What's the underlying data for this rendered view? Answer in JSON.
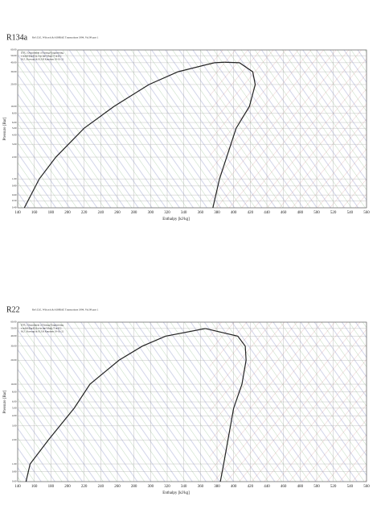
{
  "chart_data": [
    {
      "type": "line",
      "title": "R134a",
      "subtitle": "Ref :D.E. Wilcock & ASHRAE Transactions 1994, Vol.99 part 1",
      "notes": [
        "DTU, Department of Energy Engineering",
        "s in [kJ/(kg K)], v in [m^3/kg], T in [C]",
        "M.J. Skovrup & H.J.H Knudsen 19-01-21"
      ],
      "xlabel": "Enthalpy [kJ/kg]",
      "ylabel": "Pressure [Bar]",
      "log_y": true,
      "grid": true,
      "xlim": [
        140,
        560
      ],
      "xticks": [
        140,
        160,
        180,
        200,
        220,
        240,
        260,
        280,
        300,
        320,
        340,
        360,
        380,
        400,
        420,
        440,
        460,
        480,
        500,
        520,
        540,
        560
      ],
      "ylim": [
        0.4,
        60
      ],
      "yticks": [
        {
          "value": 60,
          "label": "60.00"
        },
        {
          "value": 50,
          "label": "50.00"
        },
        {
          "value": 40,
          "label": "40.00"
        },
        {
          "value": 30,
          "label": "30.00"
        },
        {
          "value": 20,
          "label": "20.00"
        },
        {
          "value": 10,
          "label": "10.00"
        },
        {
          "value": 8,
          "label": "8.00"
        },
        {
          "value": 6,
          "label": "6.00"
        },
        {
          "value": 5,
          "label": "5.00"
        },
        {
          "value": 4,
          "label": "4.00"
        },
        {
          "value": 3,
          "label": "3.00"
        },
        {
          "value": 2,
          "label": "2.00"
        },
        {
          "value": 1,
          "label": "1.00"
        },
        {
          "value": 0.8,
          "label": "0.80"
        },
        {
          "value": 0.6,
          "label": "0.60"
        },
        {
          "value": 0.5,
          "label": "0.50"
        },
        {
          "value": 0.4,
          "label": "0.40"
        }
      ],
      "series": [
        {
          "color": "#222222",
          "x": [
            148,
            166,
            186,
            220,
            256,
            298,
            333,
            377,
            389
          ],
          "values": [
            0.4,
            1,
            2,
            5,
            10,
            20,
            30,
            40,
            40.6
          ]
        },
        {
          "color": "#222222",
          "x": [
            389,
            407,
            423,
            426,
            419,
            403,
            383,
            375
          ],
          "values": [
            40.6,
            40,
            30,
            20,
            10,
            5,
            1,
            0.4
          ]
        }
      ]
    },
    {
      "type": "line",
      "title": "R22",
      "subtitle": "Ref :D.E. Wilcock & ASHRAE Transactions 1994, Vol.99 part 1",
      "notes": [
        "DTU, Department of Energy Engineering",
        "s in [kJ/(kg K)], v in [m^3/kg], T in [C]",
        "M.J. Skovrup & H.J.H Knudsen 19-01-21"
      ],
      "xlabel": "Enthalpy [kJ/kg]",
      "ylabel": "Pressure [Bar]",
      "log_y": true,
      "grid": true,
      "xlim": [
        140,
        560
      ],
      "xticks": [
        140,
        160,
        180,
        200,
        220,
        240,
        260,
        280,
        300,
        320,
        340,
        360,
        380,
        400,
        420,
        440,
        460,
        480,
        500,
        520,
        540,
        560
      ],
      "ylim": [
        0.6,
        60
      ],
      "yticks": [
        {
          "value": 60,
          "label": "60.00"
        },
        {
          "value": 50,
          "label": "50.00"
        },
        {
          "value": 40,
          "label": "40.00"
        },
        {
          "value": 30,
          "label": "30.00"
        },
        {
          "value": 20,
          "label": "20.00"
        },
        {
          "value": 10,
          "label": "10.00"
        },
        {
          "value": 8,
          "label": "8.00"
        },
        {
          "value": 6,
          "label": "6.00"
        },
        {
          "value": 5,
          "label": "5.00"
        },
        {
          "value": 4,
          "label": "4.00"
        },
        {
          "value": 3,
          "label": "3.00"
        },
        {
          "value": 2,
          "label": "2.00"
        },
        {
          "value": 1,
          "label": "1.00"
        },
        {
          "value": 0.8,
          "label": "0.80"
        },
        {
          "value": 0.6,
          "label": "0.60"
        }
      ],
      "series": [
        {
          "color": "#222222",
          "x": [
            150,
            155,
            177,
            208,
            227,
            262,
            290,
            318,
            366
          ],
          "values": [
            0.6,
            1,
            2,
            5,
            10,
            20,
            30,
            40,
            49.9
          ]
        },
        {
          "color": "#222222",
          "x": [
            366,
            405,
            414,
            415,
            410,
            400,
            388,
            384
          ],
          "values": [
            49.9,
            40,
            30,
            20,
            10,
            5,
            1,
            0.6
          ]
        }
      ]
    }
  ]
}
